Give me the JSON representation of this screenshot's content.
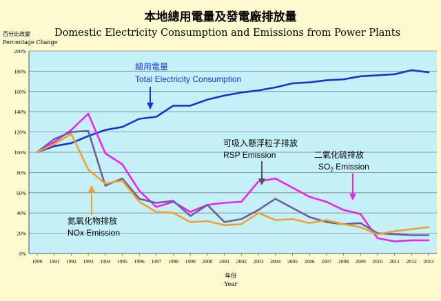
{
  "chart_data": {
    "type": "line",
    "title_zh": "本地總用電量及發電廠排放量",
    "title_en": "Domestic Electricity Consumption and Emissions from Power Plants",
    "ylabel_zh": "百分比改變",
    "ylabel_en": "Percentage Change",
    "xlabel_zh": "年份",
    "xlabel_en": "Year",
    "ylim": [
      0,
      200
    ],
    "y_ticks": [
      0,
      20,
      40,
      60,
      80,
      100,
      120,
      140,
      160,
      180,
      200
    ],
    "y_tick_suffix": "%",
    "grid": "horizontal",
    "x": [
      1990,
      1991,
      1992,
      1993,
      1994,
      1995,
      1996,
      1997,
      1998,
      1999,
      2000,
      2001,
      2002,
      2003,
      2004,
      2005,
      2006,
      2007,
      2008,
      2009,
      2010,
      2011,
      2012,
      2013
    ],
    "series": [
      {
        "key": "electricity",
        "color": "#1a33cc",
        "label_zh": "總用電量",
        "label_en": "Total Electricity Consumption",
        "values": [
          100,
          106,
          109,
          116,
          122,
          125,
          133,
          135,
          146,
          146,
          152,
          156,
          159,
          161,
          164,
          168,
          169,
          171,
          172,
          175,
          176,
          177,
          181,
          179
        ]
      },
      {
        "key": "so2",
        "color": "#ee22ee",
        "label_zh": "二氧化硫排放",
        "label_en": "SO",
        "label_en_sub": "2",
        "label_en_suffix": " Emission",
        "values": [
          100,
          110,
          122,
          138,
          99,
          88,
          62,
          46,
          51,
          41,
          48,
          50,
          51,
          71,
          74,
          65,
          56,
          51,
          43,
          39,
          15,
          12,
          13,
          13
        ]
      },
      {
        "key": "rsp",
        "color": "#6b5e9e",
        "label_zh": "可吸入懸浮粒子排放",
        "label_en": "RSP Emission",
        "values": [
          100,
          113,
          120,
          121,
          67,
          74,
          54,
          50,
          52,
          37,
          48,
          31,
          34,
          43,
          54,
          45,
          36,
          31,
          29,
          30,
          20,
          19,
          18,
          18
        ]
      },
      {
        "key": "nox",
        "color": "#f0a030",
        "label_zh": "氮氧化物排放",
        "label_en": "NOx Emission",
        "values": [
          100,
          108,
          118,
          83,
          69,
          72,
          51,
          41,
          40,
          31,
          32,
          28,
          29,
          40,
          33,
          34,
          30,
          33,
          29,
          26,
          19,
          22,
          24,
          26
        ]
      }
    ]
  }
}
